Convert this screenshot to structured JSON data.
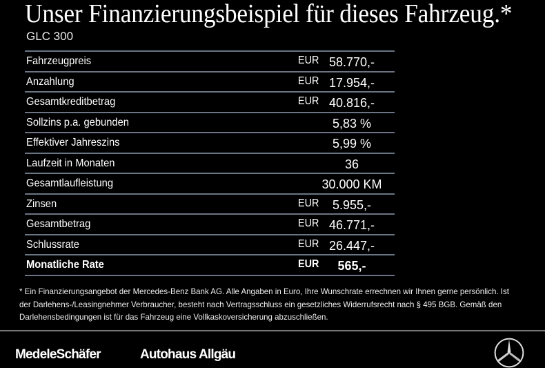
{
  "title": "Unser Finanzierungsbeispiel für dieses Fahrzeug.*",
  "model": "GLC 300",
  "rows": [
    {
      "label": "Fahrzeugpreis",
      "currency": "EUR",
      "value": "58.770,-"
    },
    {
      "label": "Anzahlung",
      "currency": "EUR",
      "value": "17.954,-"
    },
    {
      "label": "Gesamtkreditbetrag",
      "currency": "EUR",
      "value": "40.816,-"
    },
    {
      "label": "Sollzins p.a. gebunden",
      "currency": "",
      "value": "5,83 %"
    },
    {
      "label": "Effektiver Jahreszins",
      "currency": "",
      "value": "5,99 %"
    },
    {
      "label": "Laufzeit in Monaten",
      "currency": "",
      "value": "36"
    },
    {
      "label": "Gesamtlaufleistung",
      "currency": "",
      "value": "30.000 KM"
    },
    {
      "label": "Zinsen",
      "currency": "EUR",
      "value": "5.955,-"
    },
    {
      "label": "Gesamtbetrag",
      "currency": "EUR",
      "value": "46.771,-"
    },
    {
      "label": "Schlussrate",
      "currency": "EUR",
      "value": "26.447,-"
    },
    {
      "label": "Monatliche Rate",
      "currency": "EUR",
      "value": "565,-"
    }
  ],
  "footnote": "* Ein Finanzierungsangebot der Mercedes-Benz Bank AG. Alle Angaben in Euro, Ihre Wunschrate errechnen wir Ihnen gerne persönlich. Ist der Darlehens-/Leasingnehmer Verbraucher, besteht nach Vertragsschluss ein gesetzliches Widerrufsrecht nach § 495 BGB. Gemäß den Darlehensbedingungen ist für das Fahrzeug eine Vollkaskoversicherung abzuschließen.",
  "logos": {
    "dealer1": "MedeleSchäfer",
    "dealer2": "Autohaus Allgäu",
    "brand_icon": "mercedes-star-icon"
  },
  "colors": {
    "background": "#000000",
    "divider": "#6b7584"
  }
}
